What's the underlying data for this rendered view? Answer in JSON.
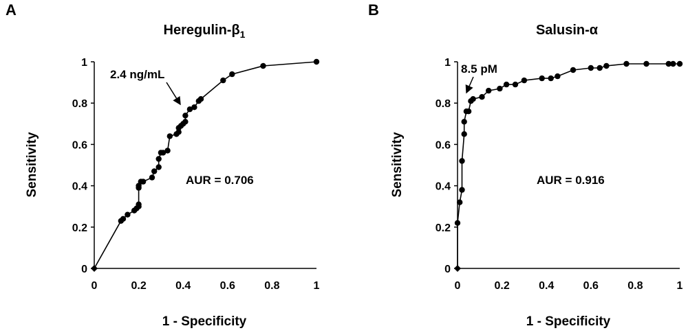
{
  "chart_data": [
    {
      "type": "line",
      "panel": "A",
      "title": "Heregulin-β",
      "title_subscript": "1",
      "xlabel": "1 - Specificity",
      "ylabel": "Sensitivity",
      "xlim": [
        0,
        1
      ],
      "ylim": [
        0,
        1
      ],
      "xticks": [
        "0",
        "0.2",
        "0.4",
        "0.6",
        "0.8",
        "1"
      ],
      "yticks": [
        "0",
        "0.2",
        "0.4",
        "0.6",
        "0.8",
        "1"
      ],
      "annotation": "2.4 ng/mL",
      "auc_label": "AUR = 0.706",
      "x": [
        0,
        0.12,
        0.13,
        0.15,
        0.18,
        0.19,
        0.2,
        0.2,
        0.2,
        0.2,
        0.21,
        0.22,
        0.26,
        0.27,
        0.29,
        0.29,
        0.3,
        0.31,
        0.33,
        0.34,
        0.37,
        0.38,
        0.38,
        0.39,
        0.4,
        0.41,
        0.41,
        0.43,
        0.45,
        0.47,
        0.48,
        0.58,
        0.62,
        0.76,
        1.0
      ],
      "y": [
        0,
        0.23,
        0.24,
        0.26,
        0.28,
        0.29,
        0.3,
        0.31,
        0.39,
        0.4,
        0.42,
        0.42,
        0.44,
        0.47,
        0.49,
        0.53,
        0.56,
        0.56,
        0.57,
        0.64,
        0.65,
        0.66,
        0.68,
        0.69,
        0.7,
        0.71,
        0.74,
        0.77,
        0.78,
        0.81,
        0.82,
        0.91,
        0.94,
        0.98,
        1.0
      ]
    },
    {
      "type": "line",
      "panel": "B",
      "title": "Salusin-α",
      "xlabel": "1 - Specificity",
      "ylabel": "Sensitivity",
      "xlim": [
        0,
        1
      ],
      "ylim": [
        0,
        1
      ],
      "xticks": [
        "0",
        "0.2",
        "0.4",
        "0.6",
        "0.8",
        "1"
      ],
      "yticks": [
        "0",
        "0.2",
        "0.4",
        "0.6",
        "0.8",
        "1"
      ],
      "annotation": "8.5 pM",
      "auc_label": "AUR = 0.916",
      "x": [
        0,
        0,
        0.01,
        0.02,
        0.02,
        0.03,
        0.03,
        0.04,
        0.05,
        0.06,
        0.07,
        0.11,
        0.14,
        0.19,
        0.22,
        0.26,
        0.3,
        0.38,
        0.42,
        0.45,
        0.52,
        0.6,
        0.64,
        0.67,
        0.76,
        0.85,
        0.95,
        0.97,
        1.0
      ],
      "y": [
        0,
        0.22,
        0.32,
        0.38,
        0.52,
        0.65,
        0.71,
        0.76,
        0.76,
        0.81,
        0.82,
        0.83,
        0.86,
        0.87,
        0.89,
        0.89,
        0.91,
        0.92,
        0.92,
        0.93,
        0.96,
        0.97,
        0.97,
        0.98,
        0.99,
        0.99,
        0.99,
        0.99,
        0.99
      ]
    }
  ]
}
